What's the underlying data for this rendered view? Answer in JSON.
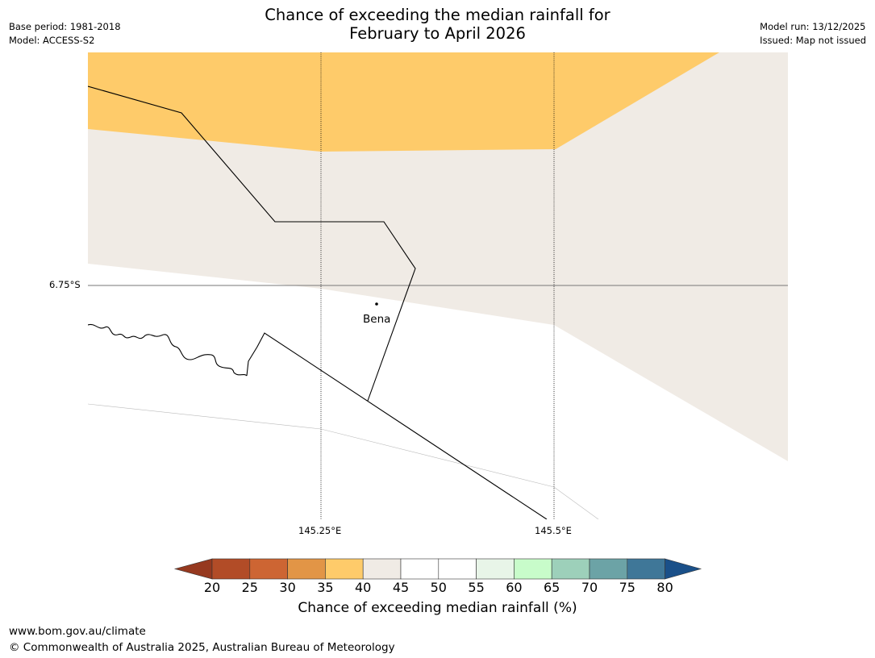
{
  "header": {
    "title_line1": "Chance of exceeding the median rainfall for",
    "title_line2": "February to April 2026",
    "base_period": "Base period: 1981-2018",
    "model": "Model: ACCESS-S2",
    "model_run": "Model run: 13/12/2025",
    "issued": "Issued: Map not issued"
  },
  "map": {
    "lat_label": "6.75°S",
    "lon_labels": [
      "145.25°E",
      "145.5°E"
    ],
    "place_name": "Bena",
    "colors": {
      "orange": "#FECB6A",
      "beige": "#F0EBE5",
      "white": "#FFFFFF"
    }
  },
  "colorbar": {
    "label": "Chance of exceeding median rainfall (%)",
    "ticks": [
      "20",
      "25",
      "30",
      "35",
      "40",
      "45",
      "50",
      "55",
      "60",
      "65",
      "70",
      "75",
      "80"
    ],
    "under_color": "#96391F",
    "over_color": "#1A5089",
    "colors": [
      "#B24C27",
      "#CD6533",
      "#E29546",
      "#FECB6A",
      "#F0EBE5",
      "#FFFFFF",
      "#FFFFFF",
      "#E8F5E8",
      "#C8FCCA",
      "#9DD0BA",
      "#6CA3A6",
      "#3F7798"
    ]
  },
  "footer": {
    "url": "www.bom.gov.au/climate",
    "copyright": "© Commonwealth of Australia 2025, Australian Bureau of Meteorology"
  }
}
